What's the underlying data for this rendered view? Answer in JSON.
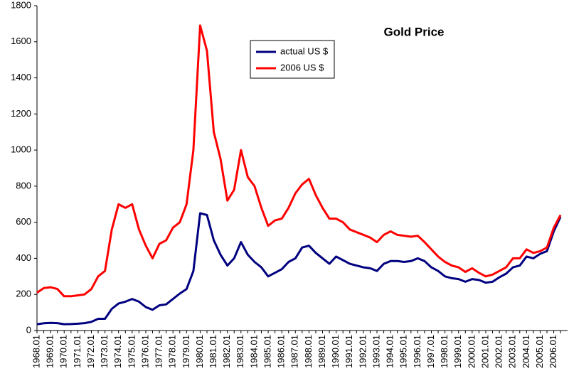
{
  "chart_data": {
    "type": "line",
    "title": "Gold Price",
    "categories": [
      "1968.01",
      null,
      "1969.01",
      null,
      "1970.01",
      null,
      "1971.01",
      null,
      "1972.01",
      null,
      "1973.01",
      null,
      "1974.01",
      null,
      "1975.01",
      null,
      "1976.01",
      null,
      "1977.01",
      null,
      "1978.01",
      null,
      "1979.01",
      null,
      "1980.01",
      null,
      "1981.01",
      null,
      "1982.01",
      null,
      "1983.01",
      null,
      "1984.01",
      null,
      "1985.01",
      null,
      "1986.01",
      null,
      "1987.01",
      null,
      "1988.01",
      null,
      "1989.01",
      null,
      "1990.01",
      null,
      "1991.01",
      null,
      "1992.01",
      null,
      "1993.01",
      null,
      "1994.01",
      null,
      "1995.01",
      null,
      "1996.01",
      null,
      "1997.01",
      null,
      "1998.01",
      null,
      "1999.01",
      null,
      "2000.01",
      null,
      "2001.01",
      null,
      "2002.01",
      null,
      "2003.01",
      null,
      "2004.01",
      null,
      "2005.01",
      null,
      "2006.01",
      null
    ],
    "series": [
      {
        "name": "actual US $",
        "color": "#000080",
        "values": [
          35,
          40,
          42,
          41,
          35,
          36,
          38,
          41,
          48,
          65,
          65,
          120,
          150,
          160,
          175,
          160,
          130,
          115,
          140,
          145,
          175,
          205,
          230,
          330,
          650,
          640,
          500,
          420,
          360,
          400,
          490,
          420,
          380,
          350,
          300,
          320,
          340,
          380,
          400,
          460,
          470,
          430,
          400,
          370,
          410,
          390,
          370,
          360,
          350,
          345,
          330,
          370,
          385,
          385,
          380,
          385,
          400,
          385,
          350,
          330,
          300,
          290,
          285,
          270,
          285,
          280,
          265,
          270,
          295,
          315,
          350,
          360,
          410,
          400,
          425,
          440,
          550,
          630
        ]
      },
      {
        "name": "2006 US $",
        "color": "#ff0000",
        "values": [
          210,
          235,
          240,
          230,
          190,
          190,
          195,
          200,
          230,
          300,
          330,
          560,
          700,
          680,
          700,
          560,
          470,
          400,
          480,
          500,
          570,
          600,
          700,
          1000,
          1690,
          1550,
          1100,
          950,
          720,
          780,
          1000,
          850,
          800,
          680,
          580,
          610,
          620,
          680,
          760,
          810,
          840,
          750,
          680,
          620,
          620,
          600,
          560,
          545,
          530,
          515,
          490,
          530,
          550,
          530,
          525,
          520,
          525,
          490,
          450,
          410,
          380,
          360,
          350,
          325,
          345,
          320,
          300,
          310,
          330,
          350,
          400,
          400,
          450,
          430,
          440,
          460,
          570,
          640
        ]
      }
    ],
    "ylim": [
      0,
      1800
    ],
    "yticks": [
      0,
      200,
      400,
      600,
      800,
      1000,
      1200,
      1400,
      1600,
      1800
    ],
    "grid": false
  }
}
